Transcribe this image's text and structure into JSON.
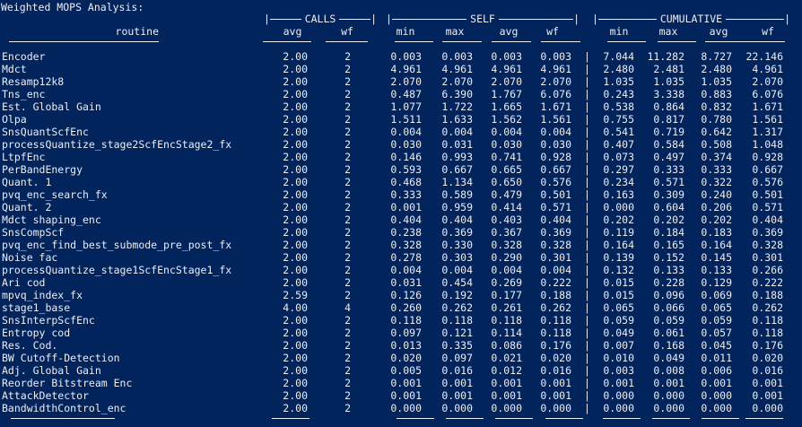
{
  "title": "Weighted MOPS Analysis:",
  "colors": {
    "background": "#02245C",
    "text": "#EEEDF0"
  },
  "table": {
    "group_headers": [
      "CALLS",
      "SELF",
      "CUMULATIVE"
    ],
    "routine_header": "routine",
    "sub_headers": {
      "calls": [
        "avg",
        "wf"
      ],
      "self": [
        "min",
        "max",
        "avg",
        "wf"
      ],
      "cumulative": [
        "min",
        "max",
        "avg",
        "wf"
      ]
    },
    "rows": [
      {
        "routine": "Encoder",
        "calls": [
          "2.00",
          "2"
        ],
        "self": [
          "0.003",
          "0.003",
          "0.003",
          "0.003"
        ],
        "cumulative": [
          "7.044",
          "11.282",
          "8.727",
          "22.146"
        ]
      },
      {
        "routine": "Mdct",
        "calls": [
          "2.00",
          "2"
        ],
        "self": [
          "4.961",
          "4.961",
          "4.961",
          "4.961"
        ],
        "cumulative": [
          "2.480",
          "2.481",
          "2.480",
          "4.961"
        ]
      },
      {
        "routine": "Resamp12k8",
        "calls": [
          "2.00",
          "2"
        ],
        "self": [
          "2.070",
          "2.070",
          "2.070",
          "2.070"
        ],
        "cumulative": [
          "1.035",
          "1.035",
          "1.035",
          "2.070"
        ]
      },
      {
        "routine": "Tns_enc",
        "calls": [
          "2.00",
          "2"
        ],
        "self": [
          "0.487",
          "6.390",
          "1.767",
          "6.076"
        ],
        "cumulative": [
          "0.243",
          "3.338",
          "0.883",
          "6.076"
        ]
      },
      {
        "routine": "Est. Global Gain",
        "calls": [
          "2.00",
          "2"
        ],
        "self": [
          "1.077",
          "1.722",
          "1.665",
          "1.671"
        ],
        "cumulative": [
          "0.538",
          "0.864",
          "0.832",
          "1.671"
        ]
      },
      {
        "routine": "Olpa",
        "calls": [
          "2.00",
          "2"
        ],
        "self": [
          "1.511",
          "1.633",
          "1.562",
          "1.561"
        ],
        "cumulative": [
          "0.755",
          "0.817",
          "0.780",
          "1.561"
        ]
      },
      {
        "routine": "SnsQuantScfEnc",
        "calls": [
          "2.00",
          "2"
        ],
        "self": [
          "0.004",
          "0.004",
          "0.004",
          "0.004"
        ],
        "cumulative": [
          "0.541",
          "0.719",
          "0.642",
          "1.317"
        ]
      },
      {
        "routine": "processQuantize_stage2ScfEncStage2_fx",
        "calls": [
          "2.00",
          "2"
        ],
        "self": [
          "0.030",
          "0.031",
          "0.030",
          "0.030"
        ],
        "cumulative": [
          "0.407",
          "0.584",
          "0.508",
          "1.048"
        ]
      },
      {
        "routine": "LtpfEnc",
        "calls": [
          "2.00",
          "2"
        ],
        "self": [
          "0.146",
          "0.993",
          "0.741",
          "0.928"
        ],
        "cumulative": [
          "0.073",
          "0.497",
          "0.374",
          "0.928"
        ]
      },
      {
        "routine": "PerBandEnergy",
        "calls": [
          "2.00",
          "2"
        ],
        "self": [
          "0.593",
          "0.667",
          "0.665",
          "0.667"
        ],
        "cumulative": [
          "0.297",
          "0.333",
          "0.333",
          "0.667"
        ]
      },
      {
        "routine": "Quant. 1",
        "calls": [
          "2.00",
          "2"
        ],
        "self": [
          "0.468",
          "1.134",
          "0.650",
          "0.576"
        ],
        "cumulative": [
          "0.234",
          "0.571",
          "0.322",
          "0.576"
        ]
      },
      {
        "routine": "pvq_enc_search_fx",
        "calls": [
          "2.00",
          "2"
        ],
        "self": [
          "0.333",
          "0.589",
          "0.479",
          "0.501"
        ],
        "cumulative": [
          "0.163",
          "0.309",
          "0.240",
          "0.501"
        ]
      },
      {
        "routine": "Quant. 2",
        "calls": [
          "2.00",
          "2"
        ],
        "self": [
          "0.001",
          "0.959",
          "0.414",
          "0.571"
        ],
        "cumulative": [
          "0.000",
          "0.604",
          "0.206",
          "0.571"
        ]
      },
      {
        "routine": "Mdct shaping_enc",
        "calls": [
          "2.00",
          "2"
        ],
        "self": [
          "0.404",
          "0.404",
          "0.403",
          "0.404"
        ],
        "cumulative": [
          "0.202",
          "0.202",
          "0.202",
          "0.404"
        ]
      },
      {
        "routine": "SnsCompScf",
        "calls": [
          "2.00",
          "2"
        ],
        "self": [
          "0.238",
          "0.369",
          "0.367",
          "0.369"
        ],
        "cumulative": [
          "0.119",
          "0.184",
          "0.183",
          "0.369"
        ]
      },
      {
        "routine": "pvq_enc_find_best_submode_pre_post_fx",
        "calls": [
          "2.00",
          "2"
        ],
        "self": [
          "0.328",
          "0.330",
          "0.328",
          "0.328"
        ],
        "cumulative": [
          "0.164",
          "0.165",
          "0.164",
          "0.328"
        ]
      },
      {
        "routine": "Noise fac",
        "calls": [
          "2.00",
          "2"
        ],
        "self": [
          "0.278",
          "0.303",
          "0.290",
          "0.301"
        ],
        "cumulative": [
          "0.139",
          "0.152",
          "0.145",
          "0.301"
        ]
      },
      {
        "routine": "processQuantize_stage1ScfEncStage1_fx",
        "calls": [
          "2.00",
          "2"
        ],
        "self": [
          "0.004",
          "0.004",
          "0.004",
          "0.004"
        ],
        "cumulative": [
          "0.132",
          "0.133",
          "0.133",
          "0.266"
        ]
      },
      {
        "routine": "Ari cod",
        "calls": [
          "2.00",
          "2"
        ],
        "self": [
          "0.031",
          "0.454",
          "0.269",
          "0.222"
        ],
        "cumulative": [
          "0.015",
          "0.228",
          "0.129",
          "0.222"
        ]
      },
      {
        "routine": "mpvq_index_fx",
        "calls": [
          "2.59",
          "2"
        ],
        "self": [
          "0.126",
          "0.192",
          "0.177",
          "0.188"
        ],
        "cumulative": [
          "0.015",
          "0.096",
          "0.069",
          "0.188"
        ]
      },
      {
        "routine": "stage1_base",
        "calls": [
          "4.00",
          "4"
        ],
        "self": [
          "0.260",
          "0.262",
          "0.261",
          "0.262"
        ],
        "cumulative": [
          "0.065",
          "0.066",
          "0.065",
          "0.262"
        ]
      },
      {
        "routine": "SnsInterpScfEnc",
        "calls": [
          "2.00",
          "2"
        ],
        "self": [
          "0.118",
          "0.118",
          "0.118",
          "0.118"
        ],
        "cumulative": [
          "0.059",
          "0.059",
          "0.059",
          "0.118"
        ]
      },
      {
        "routine": "Entropy cod",
        "calls": [
          "2.00",
          "2"
        ],
        "self": [
          "0.097",
          "0.121",
          "0.114",
          "0.118"
        ],
        "cumulative": [
          "0.049",
          "0.061",
          "0.057",
          "0.118"
        ]
      },
      {
        "routine": "Res. Cod.",
        "calls": [
          "2.00",
          "2"
        ],
        "self": [
          "0.013",
          "0.335",
          "0.086",
          "0.176"
        ],
        "cumulative": [
          "0.007",
          "0.168",
          "0.045",
          "0.176"
        ]
      },
      {
        "routine": "BW Cutoff-Detection",
        "calls": [
          "2.00",
          "2"
        ],
        "self": [
          "0.020",
          "0.097",
          "0.021",
          "0.020"
        ],
        "cumulative": [
          "0.010",
          "0.049",
          "0.011",
          "0.020"
        ]
      },
      {
        "routine": "Adj. Global Gain",
        "calls": [
          "2.00",
          "2"
        ],
        "self": [
          "0.005",
          "0.016",
          "0.012",
          "0.016"
        ],
        "cumulative": [
          "0.003",
          "0.008",
          "0.006",
          "0.016"
        ]
      },
      {
        "routine": "Reorder Bitstream Enc",
        "calls": [
          "2.00",
          "2"
        ],
        "self": [
          "0.001",
          "0.001",
          "0.001",
          "0.001"
        ],
        "cumulative": [
          "0.001",
          "0.001",
          "0.001",
          "0.001"
        ]
      },
      {
        "routine": "AttackDetector",
        "calls": [
          "2.00",
          "2"
        ],
        "self": [
          "0.001",
          "0.001",
          "0.001",
          "0.001"
        ],
        "cumulative": [
          "0.000",
          "0.000",
          "0.000",
          "0.001"
        ]
      },
      {
        "routine": "BandwidthControl_enc",
        "calls": [
          "2.00",
          "2"
        ],
        "self": [
          "0.000",
          "0.000",
          "0.000",
          "0.000"
        ],
        "cumulative": [
          "0.000",
          "0.000",
          "0.000",
          "0.000"
        ]
      }
    ]
  }
}
